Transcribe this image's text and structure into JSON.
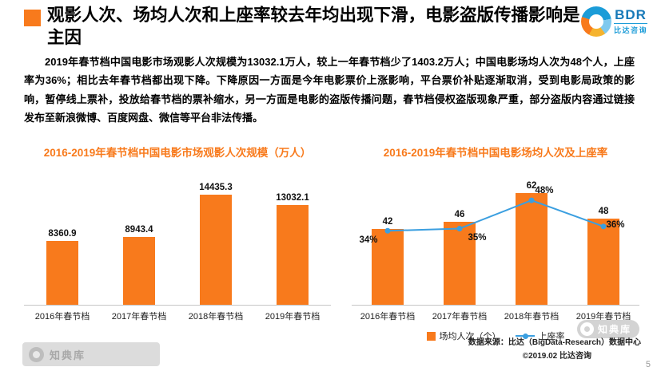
{
  "header": {
    "title": "观影人次、场均人次和上座率较去年均出现下滑，电影盗版传播影响是主因",
    "logo_text": "BDR",
    "logo_subtext": "比达咨询"
  },
  "body": {
    "paragraph": "2019年春节档中国电影市场观影人次规模为13032.1万人，较上一年春节档少了1403.2万人；中国电影场均人次为48个人，上座率为36%；相比去年春节档都出现下降。下降原因一方面是今年电影票价上涨影响，平台票价补贴逐渐取消，受到电影局政策的影响，暂停线上票补，投放给春节档的票补缩水，另一方面是电影的盗版传播问题，春节档侵权盗版现象严重，部分盗版内容通过链接发布至新浪微博、百度网盘、微信等平台非法传播。"
  },
  "chart_data": [
    {
      "type": "bar",
      "title": "2016-2019年春节档中国电影市场观影人次规模（万人）",
      "categories": [
        "2016年春节档",
        "2017年春节档",
        "2018年春节档",
        "2019年春节档"
      ],
      "values": [
        8360.9,
        8943.4,
        14435.3,
        13032.1
      ],
      "bar_color": "#F87A1C",
      "xlabel": "",
      "ylabel": "万人",
      "ylim": [
        0,
        15000
      ],
      "grid": false,
      "legend_position": "none",
      "data_labels": true
    },
    {
      "type": "bar",
      "title": "2016-2019年春节档中国电影场均人次及上座率",
      "categories": [
        "2016年春节档",
        "2017年春节档",
        "2018年春节档",
        "2019年春节档"
      ],
      "series": [
        {
          "name": "场均人次（个）",
          "kind": "bar",
          "values": [
            42,
            46,
            62,
            48
          ],
          "unit": "",
          "color": "#F87A1C"
        },
        {
          "name": "上座率",
          "kind": "line",
          "values": [
            34,
            35,
            48,
            36
          ],
          "unit": "%",
          "color": "#3B9FE0"
        }
      ],
      "ylim_bar": [
        0,
        70
      ],
      "ylim_line_pct": [
        0,
        55
      ],
      "grid": false,
      "legend_position": "bottom",
      "data_labels": true
    }
  ],
  "footer": {
    "source": "数据来源：比达（BigData-Research）数据中心",
    "copyright": "©2019.02 比达咨询",
    "page_number": "5"
  },
  "watermark": {
    "text": "知典库"
  },
  "colors": {
    "accent_orange": "#F87A1C",
    "line_blue": "#3B9FE0",
    "axis_grey": "#C6C6C6"
  }
}
